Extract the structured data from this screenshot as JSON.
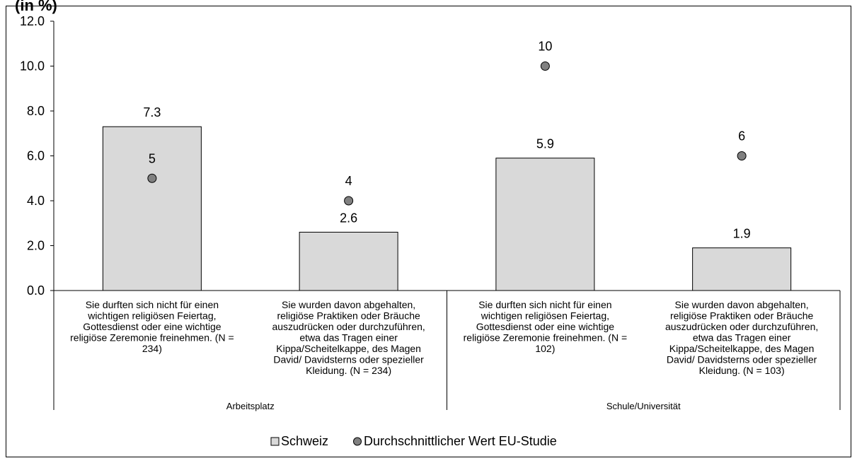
{
  "chart_data": {
    "type": "bar",
    "title_fragment": "(in %)",
    "ylim": [
      0,
      12
    ],
    "yticks": [
      "0.0",
      "2.0",
      "4.0",
      "6.0",
      "8.0",
      "10.0",
      "12.0"
    ],
    "grid": false,
    "categories": [
      [
        "Sie durften sich nicht für einen",
        "wichtigen religiösen Feiertag,",
        "Gottesdienst oder eine wichtige",
        "religiöse Zeremonie freinehmen. (N =",
        "234)"
      ],
      [
        "Sie wurden davon abgehalten,",
        "religiöse Praktiken oder Bräuche",
        "auszudrücken oder durchzuführen,",
        "etwa das Tragen einer",
        "Kippa/Scheitelkappe, des Magen",
        "David/ Davidsterns oder spezieller",
        "Kleidung. (N = 234)"
      ],
      [
        "Sie durften sich nicht für einen",
        "wichtigen religiösen Feiertag,",
        "Gottesdienst oder eine wichtige",
        "religiöse Zeremonie freinehmen. (N =",
        "102)"
      ],
      [
        "Sie wurden davon abgehalten,",
        "religiöse Praktiken oder Bräuche",
        "auszudrücken oder durchzuführen,",
        "etwa das Tragen einer",
        "Kippa/Scheitelkappe, des Magen",
        "David/ Davidsterns oder spezieller",
        "Kleidung. (N = 103)"
      ]
    ],
    "groups": [
      {
        "label": "Arbeitsplatz",
        "span": [
          0,
          1
        ]
      },
      {
        "label": "Schule/Universität",
        "span": [
          2,
          3
        ]
      }
    ],
    "series": [
      {
        "name": "Schweiz",
        "kind": "bar",
        "values": [
          7.3,
          2.6,
          5.9,
          1.9
        ],
        "labels": [
          "7.3",
          "2.6",
          "5.9",
          "1.9"
        ],
        "color": "#d9d9d9"
      },
      {
        "name": "Durchschnittlicher Wert EU-Studie",
        "kind": "marker",
        "values": [
          5,
          4,
          10,
          6
        ],
        "labels": [
          "5",
          "4",
          "10",
          "6"
        ],
        "color": "#808080"
      }
    ],
    "legend_position": "bottom"
  }
}
